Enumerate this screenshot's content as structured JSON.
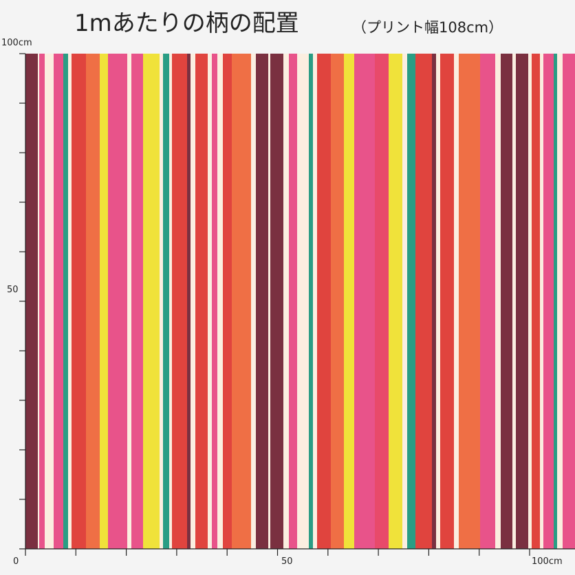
{
  "title": "1mあたりの柄の配置",
  "subtitle": "（プリント幅108cm）",
  "ruler": {
    "left": {
      "top": "100cm",
      "middle": "50"
    },
    "bottom": {
      "start": "0",
      "middle": "50",
      "end": "100cm"
    }
  }
}
